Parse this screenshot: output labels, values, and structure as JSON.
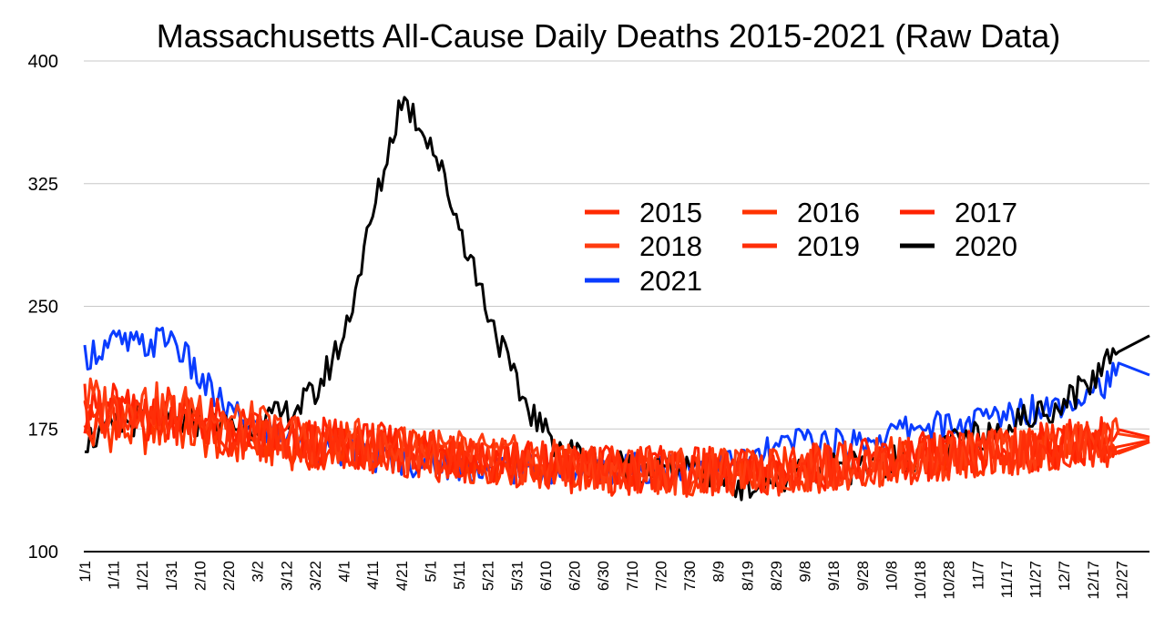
{
  "chart_data": {
    "type": "line",
    "title": "Massachusetts All-Cause Daily Deaths 2015-2021 (Raw Data)",
    "xlabel": "",
    "ylabel": "",
    "ylim": [
      100,
      400
    ],
    "yticks": [
      "100",
      "175",
      "250",
      "325",
      "400"
    ],
    "grid": true,
    "legend_position": "right-middle",
    "x_categories": [
      "1/1",
      "1/11",
      "1/21",
      "1/31",
      "2/10",
      "2/20",
      "3/2",
      "3/12",
      "3/22",
      "4/1",
      "4/11",
      "4/21",
      "5/1",
      "5/11",
      "5/21",
      "5/31",
      "6/10",
      "6/20",
      "6/30",
      "7/10",
      "7/20",
      "7/30",
      "8/9",
      "8/19",
      "8/29",
      "9/8",
      "9/18",
      "9/28",
      "10/8",
      "10/18",
      "10/28",
      "11/7",
      "11/17",
      "11/27",
      "12/7",
      "12/17",
      "12/27"
    ],
    "series": [
      {
        "name": "2015",
        "color": "#ff2a00",
        "values": [
          190,
          178,
          182,
          186,
          176,
          170,
          174,
          168,
          163,
          162,
          165,
          160,
          158,
          157,
          156,
          154,
          152,
          150,
          149,
          150,
          148,
          149,
          147,
          148,
          149,
          151,
          152,
          153,
          155,
          157,
          158,
          159,
          161,
          162,
          164,
          165,
          168
        ]
      },
      {
        "name": "2016",
        "color": "#ff3300",
        "values": [
          170,
          176,
          173,
          178,
          171,
          169,
          166,
          165,
          164,
          166,
          162,
          161,
          159,
          158,
          155,
          153,
          152,
          151,
          150,
          149,
          149,
          148,
          148,
          147,
          149,
          150,
          152,
          153,
          155,
          156,
          157,
          158,
          160,
          161,
          163,
          166,
          167
        ]
      },
      {
        "name": "2017",
        "color": "#ff2200",
        "values": [
          185,
          190,
          180,
          184,
          182,
          177,
          172,
          170,
          168,
          166,
          164,
          163,
          160,
          159,
          157,
          155,
          153,
          152,
          150,
          151,
          150,
          149,
          149,
          148,
          150,
          151,
          153,
          154,
          156,
          158,
          159,
          160,
          162,
          163,
          166,
          168,
          170
        ]
      },
      {
        "name": "2018",
        "color": "#ff3c10",
        "values": [
          195,
          188,
          192,
          185,
          190,
          180,
          176,
          171,
          168,
          167,
          165,
          163,
          162,
          160,
          158,
          156,
          154,
          152,
          151,
          150,
          150,
          149,
          148,
          148,
          149,
          151,
          152,
          154,
          155,
          157,
          158,
          159,
          161,
          163,
          165,
          167,
          169
        ]
      },
      {
        "name": "2019",
        "color": "#ff2e08",
        "values": [
          182,
          186,
          179,
          181,
          178,
          173,
          170,
          168,
          166,
          165,
          164,
          162,
          160,
          158,
          156,
          154,
          153,
          151,
          150,
          150,
          149,
          148,
          147,
          147,
          148,
          150,
          151,
          153,
          154,
          156,
          157,
          158,
          160,
          162,
          164,
          166,
          167
        ]
      },
      {
        "name": "2020",
        "color": "#000000",
        "values": [
          168,
          175,
          182,
          178,
          180,
          176,
          178,
          184,
          196,
          232,
          305,
          378,
          352,
          300,
          248,
          200,
          172,
          160,
          155,
          152,
          150,
          148,
          146,
          140,
          144,
          148,
          150,
          152,
          155,
          160,
          164,
          170,
          178,
          183,
          192,
          205,
          232
        ]
      },
      {
        "name": "2021",
        "color": "#0a3cff",
        "values": [
          220,
          228,
          225,
          232,
          205,
          185,
          176,
          172,
          165,
          160,
          158,
          156,
          155,
          152,
          152,
          151,
          150,
          149,
          150,
          151,
          152,
          153,
          154,
          155,
          162,
          170,
          165,
          168,
          172,
          178,
          176,
          180,
          184,
          188,
          192,
          200,
          208
        ]
      }
    ]
  }
}
